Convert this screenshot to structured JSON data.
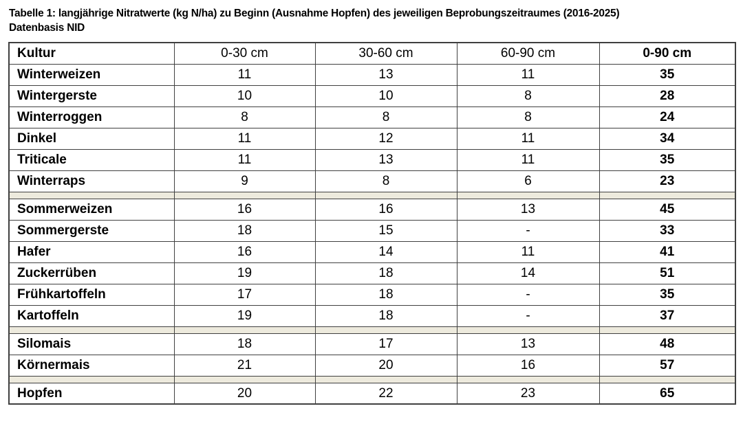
{
  "title": {
    "line1": "Tabelle 1: langjährige Nitratwerte (kg N/ha) zu Beginn (Ausnahme Hopfen) des jeweiligen Beprobungszeitraumes (2016-2025)",
    "line2": "Datenbasis NID"
  },
  "table": {
    "columns": [
      "Kultur",
      "0-30 cm",
      "30-60 cm",
      "60-90 cm",
      "0-90 cm"
    ],
    "sections": [
      {
        "rows": [
          [
            "Winterweizen",
            "11",
            "13",
            "11",
            "35"
          ],
          [
            "Wintergerste",
            "10",
            "10",
            "8",
            "28"
          ],
          [
            "Winterroggen",
            "8",
            "8",
            "8",
            "24"
          ],
          [
            "Dinkel",
            "11",
            "12",
            "11",
            "34"
          ],
          [
            "Triticale",
            "11",
            "13",
            "11",
            "35"
          ],
          [
            "Winterraps",
            "9",
            "8",
            "6",
            "23"
          ]
        ]
      },
      {
        "rows": [
          [
            "Sommerweizen",
            "16",
            "16",
            "13",
            "45"
          ],
          [
            "Sommergerste",
            "18",
            "15",
            "-",
            "33"
          ],
          [
            "Hafer",
            "16",
            "14",
            "11",
            "41"
          ],
          [
            "Zuckerrüben",
            "19",
            "18",
            "14",
            "51"
          ],
          [
            "Frühkartoffeln",
            "17",
            "18",
            "-",
            "35"
          ],
          [
            "Kartoffeln",
            "19",
            "18",
            "-",
            "37"
          ]
        ]
      },
      {
        "rows": [
          [
            "Silomais",
            "18",
            "17",
            "13",
            "48"
          ],
          [
            "Körnermais",
            "21",
            "20",
            "16",
            "57"
          ]
        ]
      },
      {
        "rows": [
          [
            "Hopfen",
            "20",
            "22",
            "23",
            "65"
          ]
        ]
      }
    ]
  },
  "colors": {
    "separator_bg": "#edeadd",
    "border": "#3f3f3f"
  }
}
